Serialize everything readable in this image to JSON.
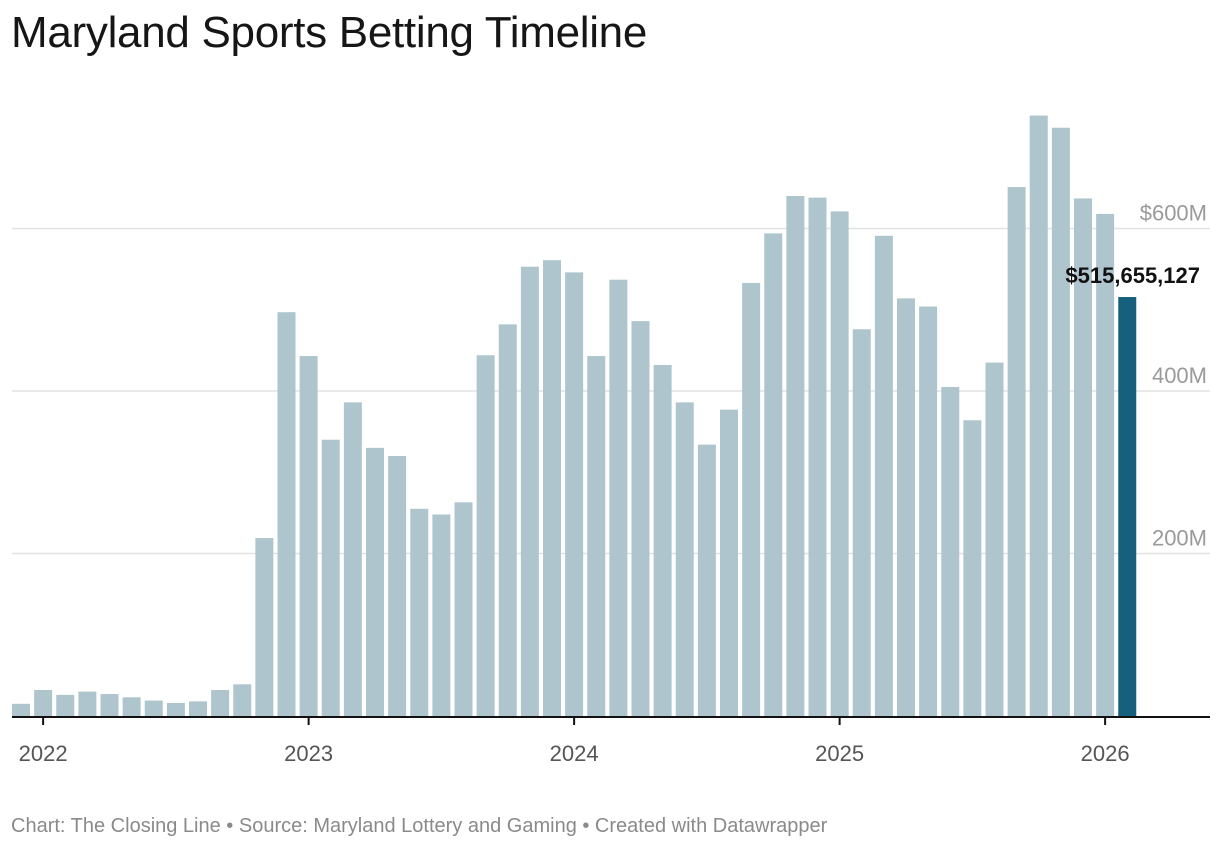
{
  "title": "Maryland Sports Betting Timeline",
  "footer": "Chart: The Closing Line • Source: Maryland Lottery and Gaming • Created with Datawrapper",
  "colors": {
    "bar": "#aec5ce",
    "highlight": "#17607d",
    "grid": "#e2e2e2",
    "axis": "#111111"
  },
  "chart_data": {
    "type": "bar",
    "title": "Maryland Sports Betting Timeline",
    "xlabel": "",
    "ylabel": "",
    "unit": "USD",
    "ylim": [
      0,
      750000000
    ],
    "grid": true,
    "y_ticks": [
      {
        "value": 200000000,
        "label": "200M"
      },
      {
        "value": 400000000,
        "label": "400M"
      },
      {
        "value": 600000000,
        "label": "$600M"
      }
    ],
    "x_ticks": [
      {
        "label": "2022",
        "category": "2022-01"
      },
      {
        "label": "2023",
        "category": "2023-01"
      },
      {
        "label": "2024",
        "category": "2024-01"
      },
      {
        "label": "2025",
        "category": "2025-01"
      },
      {
        "label": "2026",
        "category": "2026-01"
      }
    ],
    "categories": [
      "2021-12",
      "2022-01",
      "2022-02",
      "2022-03",
      "2022-04",
      "2022-05",
      "2022-06",
      "2022-07",
      "2022-08",
      "2022-09",
      "2022-10",
      "2022-11",
      "2022-12",
      "2023-01",
      "2023-02",
      "2023-03",
      "2023-04",
      "2023-05",
      "2023-06",
      "2023-07",
      "2023-08",
      "2023-09",
      "2023-10",
      "2023-11",
      "2023-12",
      "2024-01",
      "2024-02",
      "2024-03",
      "2024-04",
      "2024-05",
      "2024-06",
      "2024-07",
      "2024-08",
      "2024-09",
      "2024-10",
      "2024-11",
      "2024-12",
      "2025-01",
      "2025-02",
      "2025-03",
      "2025-04",
      "2025-05",
      "2025-06",
      "2025-07",
      "2025-08",
      "2025-09",
      "2025-10",
      "2025-11",
      "2025-12",
      "2026-01",
      "2026-02"
    ],
    "values": [
      15000000,
      32000000,
      26000000,
      30000000,
      27000000,
      23000000,
      19000000,
      16000000,
      18000000,
      32000000,
      39000000,
      219000000,
      497000000,
      443000000,
      340000000,
      386000000,
      330000000,
      320000000,
      255000000,
      248000000,
      263000000,
      444000000,
      482000000,
      553000000,
      561000000,
      546000000,
      443000000,
      537000000,
      486000000,
      432000000,
      386000000,
      334000000,
      377000000,
      533000000,
      594000000,
      640000000,
      638000000,
      621000000,
      476000000,
      591000000,
      514000000,
      504000000,
      405000000,
      364000000,
      435000000,
      651000000,
      739000000,
      724000000,
      637000000,
      618000000,
      515655127
    ],
    "highlight_index": 50,
    "annotation": {
      "text": "$515,655,127",
      "category": "2026-02"
    }
  }
}
